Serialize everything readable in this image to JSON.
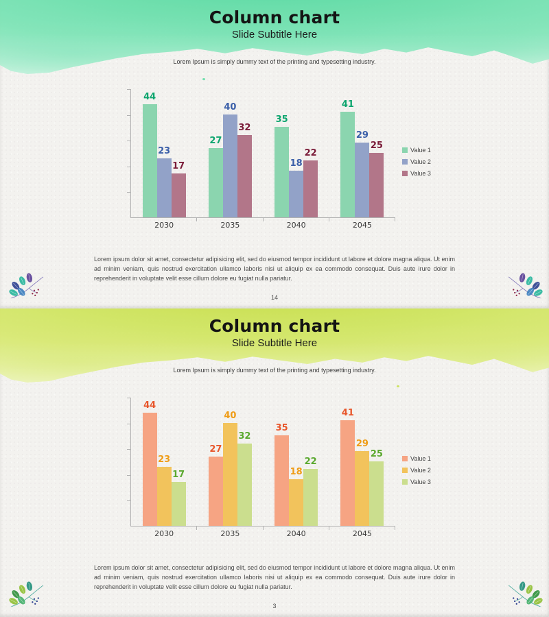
{
  "slides": [
    {
      "title": "Column chart",
      "subtitle": "Slide Subtitle Here",
      "intro": "Lorem Ipsum is simply dummy text of the printing and typesetting industry.",
      "body": "Lorem ipsum dolor sit amet, consectetur adipisicing elit, sed do eiusmod tempor incididunt ut labore et dolore magna aliqua. Ut enim ad minim veniam, quis nostrud exercitation ullamco laboris nisi ut aliquip ex ea commodo consequat. Duis aute irure dolor in reprehenderit in voluptate velit esse cillum dolore eu fugiat nulla pariatur.",
      "page_number": "14",
      "theme": {
        "wash_dense": "#4ed89b",
        "wash_mid": "#7ce4b6",
        "wash_light": "#c4f2dc",
        "leaf_colors": [
          "#2c3f8f",
          "#27b59b",
          "#5a3f96",
          "#3c7fbf"
        ],
        "berry_color": "#8e2a4b",
        "stem_color": "#6f63b0"
      }
    },
    {
      "title": "Column chart",
      "subtitle": "Slide Subtitle Here",
      "intro": "Lorem Ipsum is simply dummy text of the printing and typesetting industry.",
      "body": "Lorem ipsum dolor sit amet, consectetur adipisicing elit, sed do eiusmod tempor incididunt ut labore et dolore magna aliqua. Ut enim ad minim veniam, quis nostrud exercitation ullamco laboris nisi ut aliquip ex ea commodo consequat. Duis aute irure dolor in reprehenderit in voluptate velit esse cillum dolore eu fugiat nulla pariatur.",
      "page_number": "3",
      "theme": {
        "wash_dense": "#c3dd3f",
        "wash_mid": "#d7e96e",
        "wash_light": "#ecf4b4",
        "leaf_colors": [
          "#2e8f3a",
          "#8fbf33",
          "#1f8f7a",
          "#46b06a"
        ],
        "berry_color": "#2c3f8f",
        "stem_color": "#2e9e8f"
      }
    }
  ],
  "chart_data": [
    {
      "type": "bar",
      "title": "Column chart",
      "categories": [
        "2030",
        "2035",
        "2040",
        "2045"
      ],
      "series": [
        {
          "name": "Value 1",
          "values": [
            44,
            27,
            35,
            41
          ],
          "bar_color": "#8bd5af",
          "label_color": "#0da56e"
        },
        {
          "name": "Value 2",
          "values": [
            23,
            40,
            18,
            29
          ],
          "bar_color": "#92a2c8",
          "label_color": "#3a5ea8"
        },
        {
          "name": "Value 3",
          "values": [
            17,
            32,
            22,
            25
          ],
          "bar_color": "#b27689",
          "label_color": "#7a1b38"
        }
      ],
      "xlabel": "",
      "ylabel": "",
      "ylim": [
        0,
        50
      ],
      "ytick_interval": 10,
      "grid": false,
      "value_labels": true,
      "legend_position": "right"
    },
    {
      "type": "bar",
      "title": "Column chart",
      "categories": [
        "2030",
        "2035",
        "2040",
        "2045"
      ],
      "series": [
        {
          "name": "Value 1",
          "values": [
            44,
            27,
            35,
            41
          ],
          "bar_color": "#f6a483",
          "label_color": "#e8562b"
        },
        {
          "name": "Value 2",
          "values": [
            23,
            40,
            18,
            29
          ],
          "bar_color": "#f2c35c",
          "label_color": "#ef9c16"
        },
        {
          "name": "Value 3",
          "values": [
            17,
            32,
            22,
            25
          ],
          "bar_color": "#cbde8e",
          "label_color": "#5aa82e"
        }
      ],
      "xlabel": "",
      "ylabel": "",
      "ylim": [
        0,
        50
      ],
      "ytick_interval": 10,
      "grid": false,
      "value_labels": true,
      "legend_position": "right"
    }
  ]
}
